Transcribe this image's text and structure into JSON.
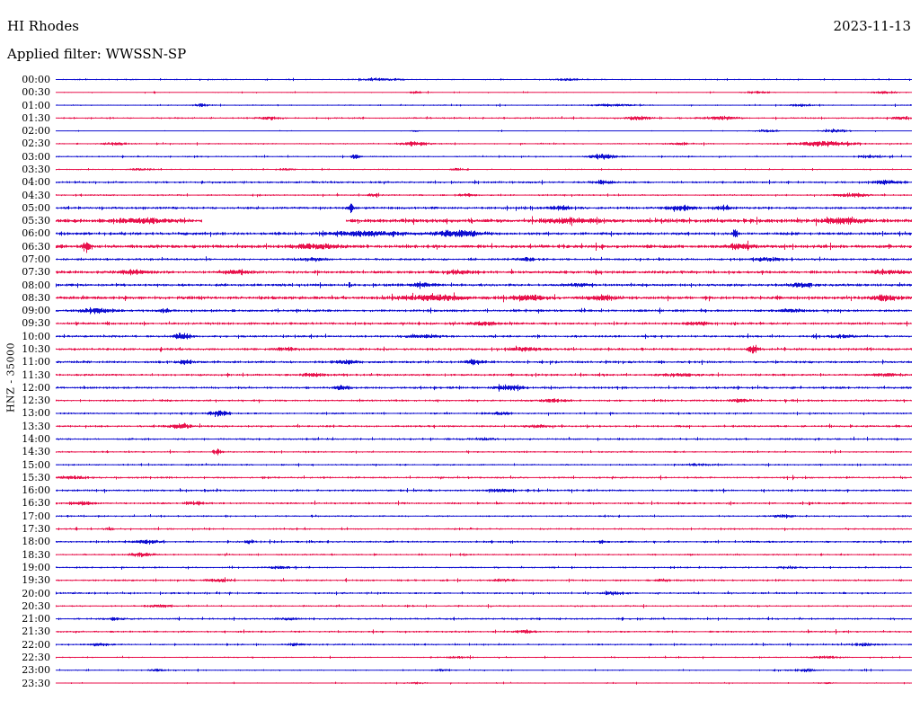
{
  "header": {
    "station": "HI Rhodes",
    "date": "2023-11-13",
    "filter_label": "Applied filter: WWSSN-SP"
  },
  "y_axis": {
    "label": "HNZ - 35000"
  },
  "colors": {
    "blue": "#0d0dd0",
    "red": "#e8114b",
    "background": "#ffffff",
    "text": "#000000"
  },
  "chart_data": {
    "type": "line",
    "subtype": "helicorder-dayplot",
    "title": "HI Rhodes",
    "station": "HI Rhodes",
    "channel": "HNZ",
    "scale": "35000",
    "date": "2023-11-13",
    "filter": "WWSSN-SP",
    "minutes_per_row": 30,
    "rows_per_day": 48,
    "grid": false,
    "legend": "none",
    "note": "events = [position_fraction_of_row, amplitude_px, width_fraction]; gaps = [start_fraction, end_fraction] of missing data",
    "rows": [
      {
        "time": "00:00",
        "color": "blue",
        "noise": 0.7,
        "events": [
          [
            0.38,
            1.3,
            0.02
          ],
          [
            0.6,
            1.1,
            0.015
          ]
        ],
        "gaps": []
      },
      {
        "time": "00:30",
        "color": "red",
        "noise": 0.6,
        "events": [
          [
            0.42,
            1.6,
            0.006
          ],
          [
            0.82,
            1.4,
            0.01
          ],
          [
            0.97,
            1.6,
            0.012
          ]
        ],
        "gaps": []
      },
      {
        "time": "01:00",
        "color": "blue",
        "noise": 0.7,
        "events": [
          [
            0.17,
            1.4,
            0.008
          ],
          [
            0.65,
            1.5,
            0.02
          ],
          [
            0.87,
            1.2,
            0.01
          ]
        ],
        "gaps": []
      },
      {
        "time": "01:30",
        "color": "red",
        "noise": 0.9,
        "events": [
          [
            0.25,
            1.6,
            0.01
          ],
          [
            0.68,
            2.0,
            0.012
          ],
          [
            0.78,
            1.8,
            0.015
          ],
          [
            0.99,
            1.8,
            0.01
          ]
        ],
        "gaps": []
      },
      {
        "time": "02:00",
        "color": "blue",
        "noise": 0.5,
        "events": [
          [
            0.42,
            1.0,
            0.004
          ],
          [
            0.83,
            1.6,
            0.01
          ],
          [
            0.91,
            1.8,
            0.012
          ]
        ],
        "gaps": []
      },
      {
        "time": "02:30",
        "color": "red",
        "noise": 0.8,
        "events": [
          [
            0.07,
            1.8,
            0.01
          ],
          [
            0.42,
            2.4,
            0.012
          ],
          [
            0.73,
            1.4,
            0.01
          ],
          [
            0.9,
            2.8,
            0.025
          ]
        ],
        "gaps": []
      },
      {
        "time": "03:00",
        "color": "blue",
        "noise": 0.8,
        "events": [
          [
            0.35,
            4.2,
            0.003
          ],
          [
            0.64,
            3.2,
            0.012
          ],
          [
            0.95,
            1.8,
            0.01
          ]
        ],
        "gaps": []
      },
      {
        "time": "03:30",
        "color": "red",
        "noise": 0.7,
        "events": [
          [
            0.1,
            1.2,
            0.01
          ],
          [
            0.27,
            1.3,
            0.008
          ],
          [
            0.47,
            1.4,
            0.006
          ]
        ],
        "gaps": []
      },
      {
        "time": "04:00",
        "color": "blue",
        "noise": 1.1,
        "events": [
          [
            0.64,
            1.8,
            0.01
          ],
          [
            0.97,
            2.0,
            0.012
          ]
        ],
        "gaps": []
      },
      {
        "time": "04:30",
        "color": "red",
        "noise": 0.9,
        "events": [
          [
            0.37,
            1.5,
            0.006
          ],
          [
            0.48,
            1.4,
            0.008
          ],
          [
            0.93,
            2.0,
            0.015
          ]
        ],
        "gaps": []
      },
      {
        "time": "05:00",
        "color": "blue",
        "noise": 1.3,
        "events": [
          [
            0.345,
            6.0,
            0.002
          ],
          [
            0.59,
            2.4,
            0.008
          ],
          [
            0.73,
            2.8,
            0.012
          ],
          [
            0.78,
            2.0,
            0.008
          ]
        ],
        "gaps": []
      },
      {
        "time": "05:30",
        "color": "red",
        "noise": 2.0,
        "events": [
          [
            0.1,
            2.4,
            0.02
          ],
          [
            0.6,
            2.2,
            0.02
          ],
          [
            0.92,
            2.8,
            0.015
          ]
        ],
        "gaps": [
          [
            0.171,
            0.339
          ]
        ]
      },
      {
        "time": "06:00",
        "color": "blue",
        "noise": 1.5,
        "events": [
          [
            0.36,
            2.8,
            0.03
          ],
          [
            0.47,
            3.2,
            0.02
          ],
          [
            0.794,
            6.5,
            0.002
          ]
        ],
        "gaps": []
      },
      {
        "time": "06:30",
        "color": "red",
        "noise": 1.8,
        "events": [
          [
            0.035,
            4.5,
            0.004
          ],
          [
            0.3,
            2.2,
            0.02
          ],
          [
            0.8,
            2.8,
            0.012
          ]
        ],
        "gaps": []
      },
      {
        "time": "07:00",
        "color": "blue",
        "noise": 1.2,
        "events": [
          [
            0.3,
            1.8,
            0.012
          ],
          [
            0.55,
            1.6,
            0.01
          ],
          [
            0.83,
            2.0,
            0.012
          ]
        ],
        "gaps": []
      },
      {
        "time": "07:30",
        "color": "red",
        "noise": 1.5,
        "events": [
          [
            0.09,
            2.4,
            0.015
          ],
          [
            0.21,
            2.2,
            0.012
          ],
          [
            0.47,
            2.0,
            0.01
          ],
          [
            0.97,
            2.4,
            0.012
          ]
        ],
        "gaps": []
      },
      {
        "time": "08:00",
        "color": "blue",
        "noise": 1.4,
        "events": [
          [
            0.43,
            2.0,
            0.012
          ],
          [
            0.61,
            1.8,
            0.01
          ],
          [
            0.87,
            2.2,
            0.01
          ]
        ],
        "gaps": []
      },
      {
        "time": "08:30",
        "color": "red",
        "noise": 1.7,
        "events": [
          [
            0.44,
            3.2,
            0.025
          ],
          [
            0.55,
            2.8,
            0.015
          ],
          [
            0.64,
            2.8,
            0.012
          ],
          [
            0.97,
            2.8,
            0.012
          ]
        ],
        "gaps": []
      },
      {
        "time": "09:00",
        "color": "blue",
        "noise": 1.3,
        "events": [
          [
            0.05,
            2.4,
            0.015
          ],
          [
            0.127,
            3.0,
            0.004
          ],
          [
            0.86,
            1.8,
            0.01
          ]
        ],
        "gaps": []
      },
      {
        "time": "09:30",
        "color": "red",
        "noise": 1.3,
        "events": [
          [
            0.5,
            1.8,
            0.012
          ],
          [
            0.75,
            1.8,
            0.01
          ]
        ],
        "gaps": []
      },
      {
        "time": "10:00",
        "color": "blue",
        "noise": 1.2,
        "events": [
          [
            0.148,
            3.6,
            0.007
          ],
          [
            0.43,
            1.8,
            0.015
          ],
          [
            0.92,
            1.6,
            0.01
          ]
        ],
        "gaps": []
      },
      {
        "time": "10:30",
        "color": "red",
        "noise": 1.3,
        "events": [
          [
            0.27,
            1.8,
            0.01
          ],
          [
            0.55,
            1.8,
            0.012
          ],
          [
            0.815,
            4.0,
            0.005
          ]
        ],
        "gaps": []
      },
      {
        "time": "11:00",
        "color": "blue",
        "noise": 1.3,
        "events": [
          [
            0.152,
            2.6,
            0.006
          ],
          [
            0.34,
            2.0,
            0.01
          ],
          [
            0.49,
            2.6,
            0.008
          ]
        ],
        "gaps": []
      },
      {
        "time": "11:30",
        "color": "red",
        "noise": 1.2,
        "events": [
          [
            0.3,
            1.6,
            0.01
          ],
          [
            0.73,
            2.0,
            0.012
          ],
          [
            0.97,
            1.8,
            0.01
          ]
        ],
        "gaps": []
      },
      {
        "time": "12:00",
        "color": "blue",
        "noise": 1.2,
        "events": [
          [
            0.335,
            2.8,
            0.006
          ],
          [
            0.53,
            2.4,
            0.012
          ]
        ],
        "gaps": []
      },
      {
        "time": "12:30",
        "color": "red",
        "noise": 1.1,
        "events": [
          [
            0.58,
            1.8,
            0.01
          ],
          [
            0.8,
            1.6,
            0.01
          ]
        ],
        "gaps": []
      },
      {
        "time": "13:00",
        "color": "blue",
        "noise": 1.0,
        "events": [
          [
            0.19,
            3.8,
            0.008
          ],
          [
            0.52,
            1.4,
            0.01
          ]
        ],
        "gaps": []
      },
      {
        "time": "13:30",
        "color": "red",
        "noise": 1.1,
        "events": [
          [
            0.145,
            2.6,
            0.01
          ],
          [
            0.56,
            1.6,
            0.01
          ]
        ],
        "gaps": []
      },
      {
        "time": "14:00",
        "color": "blue",
        "noise": 1.0,
        "events": [
          [
            0.5,
            1.2,
            0.01
          ]
        ],
        "gaps": []
      },
      {
        "time": "14:30",
        "color": "red",
        "noise": 0.9,
        "events": [
          [
            0.188,
            3.2,
            0.004
          ]
        ],
        "gaps": []
      },
      {
        "time": "15:00",
        "color": "blue",
        "noise": 0.9,
        "events": [
          [
            0.75,
            1.4,
            0.01
          ]
        ],
        "gaps": []
      },
      {
        "time": "15:30",
        "color": "red",
        "noise": 1.0,
        "events": [
          [
            0.02,
            1.8,
            0.012
          ]
        ],
        "gaps": []
      },
      {
        "time": "16:00",
        "color": "blue",
        "noise": 1.1,
        "events": [
          [
            0.52,
            1.6,
            0.012
          ]
        ],
        "gaps": []
      },
      {
        "time": "16:30",
        "color": "red",
        "noise": 1.1,
        "events": [
          [
            0.03,
            1.8,
            0.01
          ],
          [
            0.16,
            1.5,
            0.008
          ]
        ],
        "gaps": []
      },
      {
        "time": "17:00",
        "color": "blue",
        "noise": 0.9,
        "events": [
          [
            0.85,
            1.4,
            0.01
          ]
        ],
        "gaps": []
      },
      {
        "time": "17:30",
        "color": "red",
        "noise": 0.9,
        "events": [
          [
            0.063,
            2.8,
            0.003
          ]
        ],
        "gaps": []
      },
      {
        "time": "18:00",
        "color": "blue",
        "noise": 1.0,
        "events": [
          [
            0.106,
            2.2,
            0.01
          ],
          [
            0.227,
            2.0,
            0.004
          ],
          [
            0.637,
            2.4,
            0.003
          ]
        ],
        "gaps": []
      },
      {
        "time": "18:30",
        "color": "red",
        "noise": 0.9,
        "events": [
          [
            0.1,
            2.4,
            0.01
          ]
        ],
        "gaps": []
      },
      {
        "time": "19:00",
        "color": "blue",
        "noise": 0.9,
        "events": [
          [
            0.26,
            1.4,
            0.01
          ],
          [
            0.86,
            1.3,
            0.01
          ]
        ],
        "gaps": []
      },
      {
        "time": "19:30",
        "color": "red",
        "noise": 1.0,
        "events": [
          [
            0.19,
            1.8,
            0.01
          ],
          [
            0.52,
            1.6,
            0.008
          ],
          [
            0.71,
            1.8,
            0.006
          ]
        ],
        "gaps": []
      },
      {
        "time": "20:00",
        "color": "blue",
        "noise": 1.0,
        "events": [
          [
            0.65,
            1.4,
            0.008
          ]
        ],
        "gaps": []
      },
      {
        "time": "20:30",
        "color": "red",
        "noise": 0.9,
        "events": [
          [
            0.12,
            1.6,
            0.01
          ]
        ],
        "gaps": []
      },
      {
        "time": "21:00",
        "color": "blue",
        "noise": 1.0,
        "events": [
          [
            0.07,
            1.4,
            0.008
          ],
          [
            0.27,
            1.4,
            0.008
          ]
        ],
        "gaps": []
      },
      {
        "time": "21:30",
        "color": "red",
        "noise": 1.0,
        "events": [
          [
            0.55,
            1.4,
            0.01
          ]
        ],
        "gaps": []
      },
      {
        "time": "22:00",
        "color": "blue",
        "noise": 0.9,
        "events": [
          [
            0.05,
            1.6,
            0.008
          ],
          [
            0.28,
            1.4,
            0.008
          ],
          [
            0.945,
            1.6,
            0.01
          ]
        ],
        "gaps": []
      },
      {
        "time": "22:30",
        "color": "red",
        "noise": 0.7,
        "events": [
          [
            0.47,
            1.4,
            0.008
          ],
          [
            0.9,
            1.6,
            0.012
          ]
        ],
        "gaps": []
      },
      {
        "time": "23:00",
        "color": "blue",
        "noise": 0.7,
        "events": [
          [
            0.12,
            1.4,
            0.008
          ],
          [
            0.45,
            1.2,
            0.008
          ],
          [
            0.875,
            1.6,
            0.012
          ]
        ],
        "gaps": []
      },
      {
        "time": "23:30",
        "color": "red",
        "noise": 0.6,
        "events": [
          [
            0.42,
            0.9,
            0.01
          ],
          [
            0.9,
            0.9,
            0.008
          ]
        ],
        "gaps": []
      }
    ]
  }
}
